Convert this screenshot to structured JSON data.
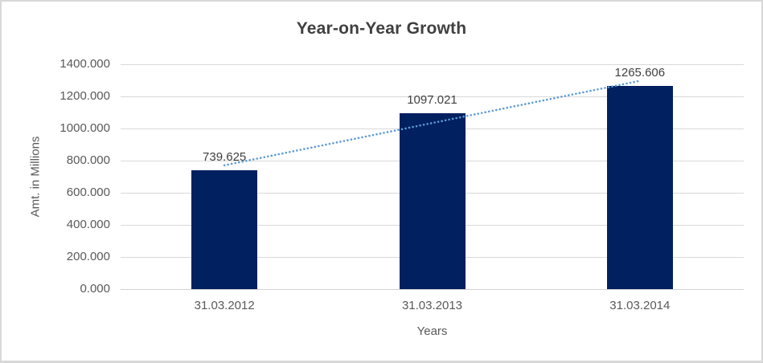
{
  "chart": {
    "title": "Year-on-Year Growth",
    "y_axis_title": "Amt. in Millions",
    "x_axis_title": "Years"
  },
  "chart_data": {
    "type": "bar",
    "title": "Year-on-Year Growth",
    "xlabel": "Years",
    "ylabel": "Amt. in Millions",
    "categories": [
      "31.03.2012",
      "31.03.2013",
      "31.03.2014"
    ],
    "values": [
      739.625,
      1097.021,
      1265.606
    ],
    "data_labels": [
      "739.625",
      "1097.021",
      "1265.606"
    ],
    "ylim": [
      0,
      1400
    ],
    "y_ticks": [
      0,
      200,
      400,
      600,
      800,
      1000,
      1200,
      1400
    ],
    "y_tick_labels": [
      "0.000",
      "200.000",
      "400.000",
      "600.000",
      "800.000",
      "1000.000",
      "1200.000",
      "1400.000"
    ],
    "grid": true,
    "legend": "none",
    "trendline": {
      "type": "linear",
      "style": "dotted"
    },
    "colors": {
      "bar": "#002060",
      "trendline": "#5b9bd5",
      "gridline": "#d9d9d9",
      "axis_line": "#d3d3d3",
      "title_text": "#404040",
      "tick_text": "#595959",
      "data_label_text": "#404040"
    }
  }
}
